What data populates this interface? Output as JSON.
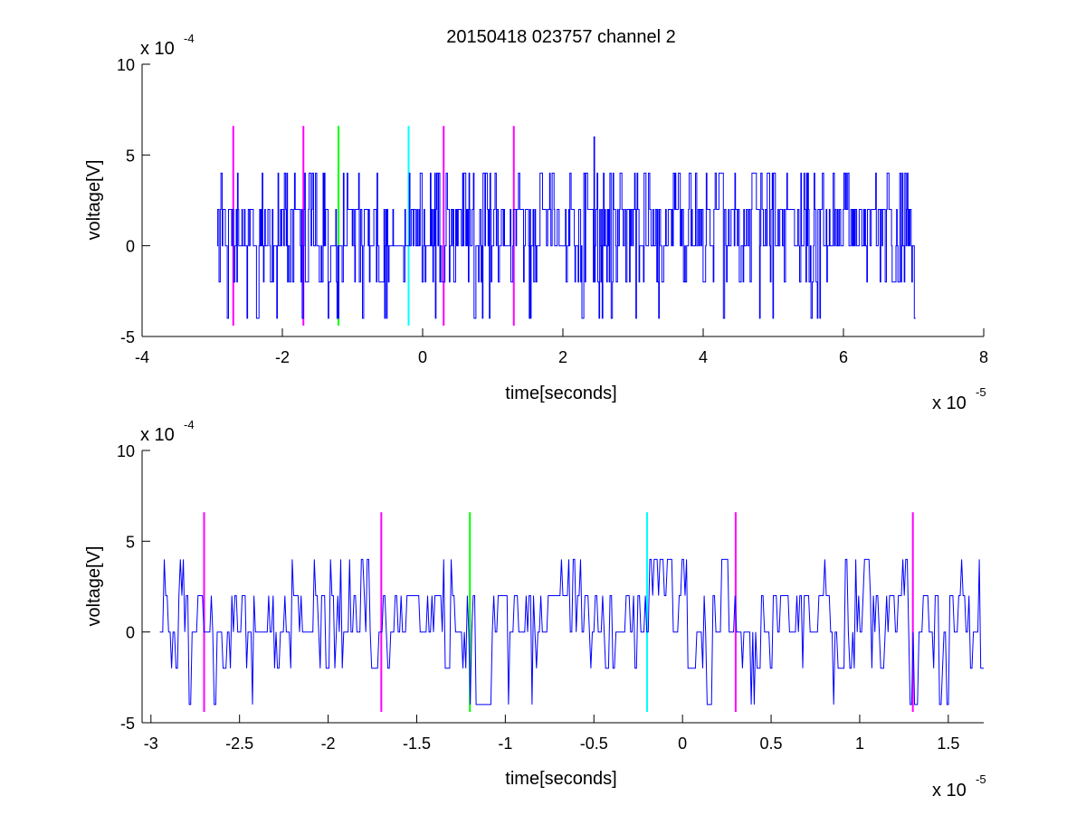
{
  "chart_data": [
    {
      "type": "line",
      "title": "20150418 023757 channel 2",
      "xlabel": "time[seconds]",
      "ylabel": "voltage[V]",
      "x_multiplier": "x 10",
      "x_multiplier_exp": "-5",
      "y_multiplier": "x 10",
      "y_multiplier_exp": "-4",
      "xlim": [
        -4,
        8
      ],
      "ylim": [
        -5,
        10
      ],
      "xticks": [
        "-4",
        "-2",
        "0",
        "2",
        "4",
        "6",
        "8"
      ],
      "yticks": [
        "-5",
        "0",
        "5",
        "10"
      ],
      "series_color": "#0000ff",
      "signal": {
        "x_start": -2.93,
        "x_end": 7.02,
        "y_levels": [
          -4,
          -2,
          0,
          2,
          4,
          6
        ],
        "y_range_typical": [
          -2,
          2
        ],
        "max_point": {
          "x": 2.44,
          "y": 6
        },
        "min_points": [
          {
            "x": -2.78,
            "y": -4
          },
          {
            "x": -1.2,
            "y": -4
          },
          {
            "x": 0.85,
            "y": -4
          },
          {
            "x": 2.56,
            "y": -4
          }
        ]
      },
      "markers": [
        {
          "x": -2.7,
          "color": "#ff00ff"
        },
        {
          "x": -1.7,
          "color": "#ff00ff"
        },
        {
          "x": -1.2,
          "color": "#00ff00"
        },
        {
          "x": -0.2,
          "color": "#00ffff"
        },
        {
          "x": 0.3,
          "color": "#ff00ff"
        },
        {
          "x": 1.3,
          "color": "#ff00ff"
        }
      ],
      "marker_y_range": [
        -4.4,
        6.6
      ],
      "grid": false
    },
    {
      "type": "line",
      "title": "",
      "xlabel": "time[seconds]",
      "ylabel": "voltage[V]",
      "x_multiplier": "x 10",
      "x_multiplier_exp": "-5",
      "y_multiplier": "x 10",
      "y_multiplier_exp": "-4",
      "xlim": [
        -3.05,
        1.7
      ],
      "ylim": [
        -5,
        10
      ],
      "xticks": [
        "-3",
        "-2.5",
        "-2",
        "-1.5",
        "-1",
        "-0.5",
        "0",
        "0.5",
        "1",
        "1.5"
      ],
      "yticks": [
        "-5",
        "0",
        "5",
        "10"
      ],
      "series_color": "#0000ff",
      "signal": {
        "x_start": -2.95,
        "x_end": 1.7,
        "y_levels": [
          -4,
          -2,
          0,
          2,
          4
        ],
        "y_range_typical": [
          -2,
          2
        ],
        "min_points": [
          {
            "x": -2.78,
            "y": -4
          },
          {
            "x": -2.64,
            "y": -4
          },
          {
            "x": -1.2,
            "y": -4
          },
          {
            "x": -0.98,
            "y": -4
          },
          {
            "x": 0.85,
            "y": -4
          }
        ]
      },
      "markers": [
        {
          "x": -2.7,
          "color": "#ff00ff"
        },
        {
          "x": -1.7,
          "color": "#ff00ff"
        },
        {
          "x": -1.2,
          "color": "#00ff00"
        },
        {
          "x": -0.2,
          "color": "#00ffff"
        },
        {
          "x": 0.3,
          "color": "#ff00ff"
        },
        {
          "x": 1.3,
          "color": "#ff00ff"
        }
      ],
      "marker_y_range": [
        -4.4,
        6.6
      ],
      "grid": false
    }
  ]
}
